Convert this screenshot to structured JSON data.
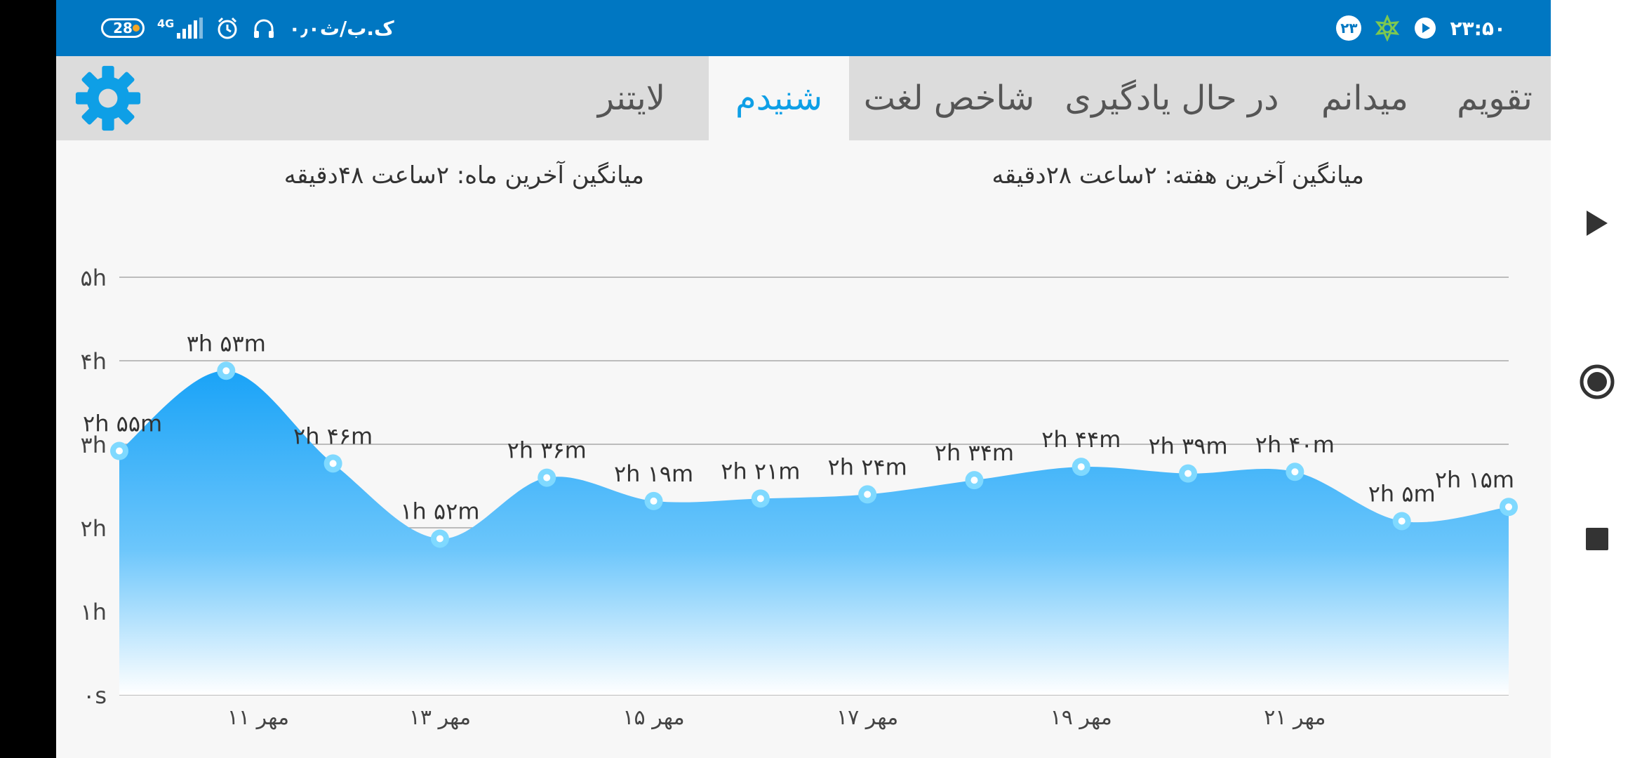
{
  "status_bar": {
    "battery": "28",
    "network": "4G",
    "speed": "۰٫۰ک.ب/ث",
    "time": "۲۳:۵۰",
    "notification_badge": "۲۳"
  },
  "tabs": [
    {
      "label": "تقویم"
    },
    {
      "label": "میدانم"
    },
    {
      "label": "در حال یادگیری"
    },
    {
      "label": "شاخص لغت"
    },
    {
      "label": "شنیدم"
    },
    {
      "label": "لایتنر"
    }
  ],
  "active_tab": "شنیدم",
  "averages": {
    "week": "میانگین آخرین هفته: ۲ساعت  ۲۸دقیقه",
    "month": "میانگین آخرین ماه: ۲ساعت  ۴۸دقیقه"
  },
  "colors": {
    "status_bar": "#0077c2",
    "accent": "#0e9fe6",
    "area_top": "#1aa3f7",
    "area_bottom": "#ffffff",
    "marker": "#7fd9ff"
  },
  "chart_data": {
    "type": "area",
    "y_ticks": [
      "۰s",
      "۱h",
      "۲h",
      "۳h",
      "۴h",
      "۵h"
    ],
    "ylim": [
      0,
      5
    ],
    "x_ticks": [
      {
        "x": 1.3,
        "label": "۱۱ مهر"
      },
      {
        "x": 3,
        "label": "۱۳ مهر"
      },
      {
        "x": 5,
        "label": "۱۵ مهر"
      },
      {
        "x": 7,
        "label": "۱۷ مهر"
      },
      {
        "x": 9,
        "label": "۱۹ مهر"
      },
      {
        "x": 11,
        "label": "۲۱ مهر"
      }
    ],
    "points": [
      {
        "x": 0,
        "y": 2.92,
        "label": "۲h ۵۵m"
      },
      {
        "x": 1,
        "y": 3.88,
        "label": "۳h ۵۳m"
      },
      {
        "x": 2,
        "y": 2.77,
        "label": "۲h ۴۶m"
      },
      {
        "x": 3,
        "y": 1.87,
        "label": "۱h ۵۲m"
      },
      {
        "x": 4,
        "y": 2.6,
        "label": "۲h ۳۶m"
      },
      {
        "x": 5,
        "y": 2.32,
        "label": "۲h ۱۹m"
      },
      {
        "x": 6,
        "y": 2.35,
        "label": "۲h ۲۱m"
      },
      {
        "x": 7,
        "y": 2.4,
        "label": "۲h ۲۴m"
      },
      {
        "x": 8,
        "y": 2.57,
        "label": "۲h ۳۴m"
      },
      {
        "x": 9,
        "y": 2.73,
        "label": "۲h ۴۴m"
      },
      {
        "x": 10,
        "y": 2.65,
        "label": "۲h ۳۹m"
      },
      {
        "x": 11,
        "y": 2.67,
        "label": "۲h ۴۰m"
      },
      {
        "x": 12,
        "y": 2.08,
        "label": "۲h ۵m"
      },
      {
        "x": 13,
        "y": 2.25,
        "label": "۲h ۱۵m"
      }
    ]
  },
  "nav": [
    {
      "icon": "back-triangle-icon"
    },
    {
      "icon": "home-circle-icon"
    },
    {
      "icon": "recents-square-icon"
    }
  ]
}
